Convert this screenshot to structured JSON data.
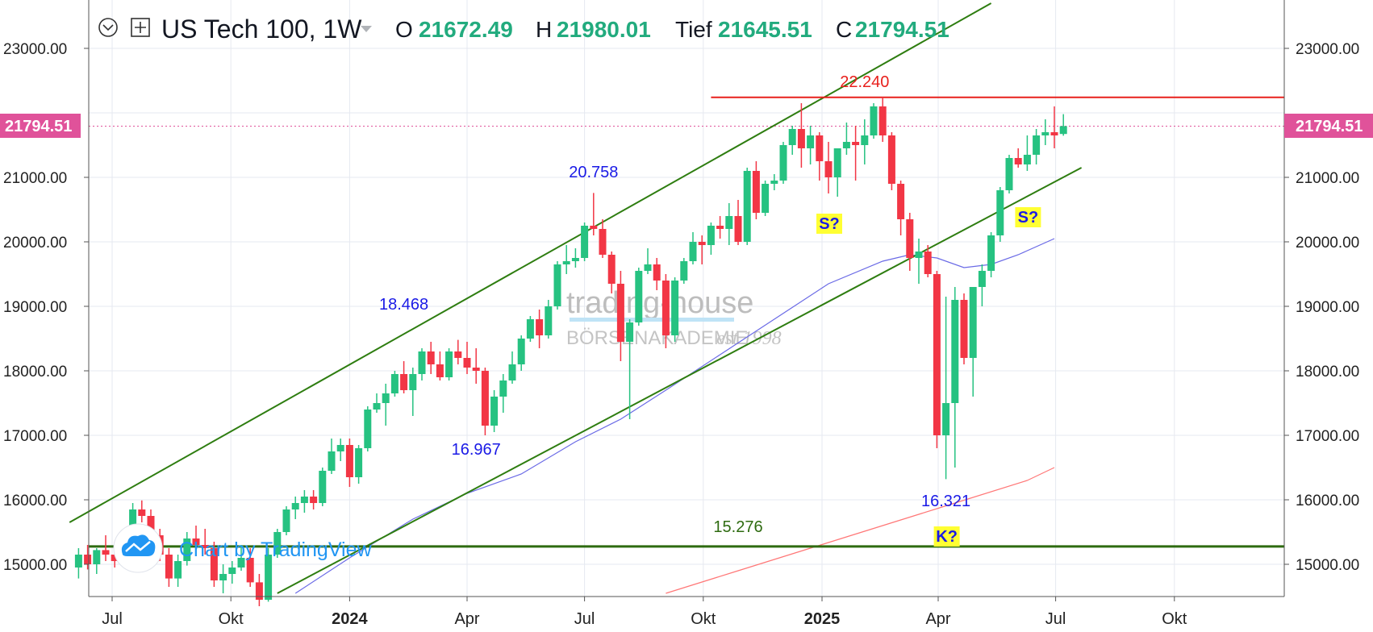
{
  "header": {
    "symbol": "US Tech 100, 1W",
    "open_label": "O",
    "open": "21672.49",
    "high_label": "H",
    "high": "21980.01",
    "low_label": "Tief",
    "low": "21645.51",
    "close_label": "C",
    "close": "21794.51"
  },
  "price_badge": "21794.51",
  "watermark": {
    "line1": "trading-house",
    "line2": "BÖRSENAKADEMIE",
    "line3": "est 1998"
  },
  "credit": "Chart by TradingView",
  "colors": {
    "up": "#26c281",
    "down": "#f23645",
    "channel": "#2e7d10",
    "ma_fast": "#6a6ae6",
    "ma_slow": "#f77",
    "resistance": "#e8201c",
    "support": "#2e6b10",
    "badge": "#e0529a"
  },
  "chart_data": {
    "type": "candlestick",
    "interval": "1W",
    "ylim": [
      14550,
      23650
    ],
    "y_ticks": [
      "15000.00",
      "16000.00",
      "17000.00",
      "18000.00",
      "19000.00",
      "20000.00",
      "21000.00",
      "23000.00"
    ],
    "y_tick_values": [
      15000,
      16000,
      17000,
      18000,
      19000,
      20000,
      21000,
      23000
    ],
    "x_ticks": [
      {
        "label": "Jul",
        "date": "2023-07-01"
      },
      {
        "label": "Okt",
        "date": "2023-10-01"
      },
      {
        "label": "2024",
        "date": "2024-01-01",
        "bold": true
      },
      {
        "label": "Apr",
        "date": "2024-04-01"
      },
      {
        "label": "Jul",
        "date": "2024-07-01"
      },
      {
        "label": "Okt",
        "date": "2024-10-01"
      },
      {
        "label": "2025",
        "date": "2025-01-01",
        "bold": true
      },
      {
        "label": "Apr",
        "date": "2025-04-01"
      },
      {
        "label": "Jul",
        "date": "2025-07-01"
      },
      {
        "label": "Okt",
        "date": "2025-10-01"
      }
    ],
    "last_price": 21794.51,
    "candles": [
      {
        "d": "2023-06-05",
        "o": 14950,
        "h": 15250,
        "l": 14780,
        "c": 15150
      },
      {
        "d": "2023-06-12",
        "o": 15150,
        "h": 15300,
        "l": 14920,
        "c": 15000
      },
      {
        "d": "2023-06-19",
        "o": 15000,
        "h": 15250,
        "l": 14850,
        "c": 15220
      },
      {
        "d": "2023-06-26",
        "o": 15220,
        "h": 15450,
        "l": 15050,
        "c": 15150
      },
      {
        "d": "2023-07-03",
        "o": 15150,
        "h": 15350,
        "l": 14950,
        "c": 15050
      },
      {
        "d": "2023-07-10",
        "o": 15050,
        "h": 15550,
        "l": 15000,
        "c": 15480
      },
      {
        "d": "2023-07-17",
        "o": 15480,
        "h": 15950,
        "l": 15400,
        "c": 15850
      },
      {
        "d": "2023-07-24",
        "o": 15850,
        "h": 15990,
        "l": 15650,
        "c": 15750
      },
      {
        "d": "2023-07-31",
        "o": 15750,
        "h": 15850,
        "l": 15350,
        "c": 15450
      },
      {
        "d": "2023-08-07",
        "o": 15450,
        "h": 15550,
        "l": 15050,
        "c": 15150
      },
      {
        "d": "2023-08-14",
        "o": 15150,
        "h": 15250,
        "l": 14650,
        "c": 14780
      },
      {
        "d": "2023-08-21",
        "o": 14780,
        "h": 15150,
        "l": 14650,
        "c": 15050
      },
      {
        "d": "2023-08-28",
        "o": 15050,
        "h": 15500,
        "l": 14980,
        "c": 15400
      },
      {
        "d": "2023-09-04",
        "o": 15400,
        "h": 15600,
        "l": 15250,
        "c": 15300
      },
      {
        "d": "2023-09-11",
        "o": 15300,
        "h": 15550,
        "l": 15150,
        "c": 15250
      },
      {
        "d": "2023-09-18",
        "o": 15250,
        "h": 15350,
        "l": 14650,
        "c": 14750
      },
      {
        "d": "2023-09-25",
        "o": 14750,
        "h": 15000,
        "l": 14550,
        "c": 14850
      },
      {
        "d": "2023-10-02",
        "o": 14850,
        "h": 15050,
        "l": 14700,
        "c": 14950
      },
      {
        "d": "2023-10-09",
        "o": 14950,
        "h": 15300,
        "l": 14900,
        "c": 15100
      },
      {
        "d": "2023-10-16",
        "o": 15100,
        "h": 15250,
        "l": 14650,
        "c": 14720
      },
      {
        "d": "2023-10-23",
        "o": 14720,
        "h": 14850,
        "l": 14350,
        "c": 14450
      },
      {
        "d": "2023-10-30",
        "o": 14450,
        "h": 15250,
        "l": 14420,
        "c": 15150
      },
      {
        "d": "2023-11-06",
        "o": 15150,
        "h": 15550,
        "l": 15100,
        "c": 15500
      },
      {
        "d": "2023-11-13",
        "o": 15500,
        "h": 15900,
        "l": 15450,
        "c": 15850
      },
      {
        "d": "2023-11-20",
        "o": 15850,
        "h": 16050,
        "l": 15700,
        "c": 15950
      },
      {
        "d": "2023-11-27",
        "o": 15950,
        "h": 16150,
        "l": 15800,
        "c": 16050
      },
      {
        "d": "2023-12-04",
        "o": 16050,
        "h": 16150,
        "l": 15850,
        "c": 15950
      },
      {
        "d": "2023-12-11",
        "o": 15950,
        "h": 16500,
        "l": 15900,
        "c": 16450
      },
      {
        "d": "2023-12-18",
        "o": 16450,
        "h": 16950,
        "l": 16400,
        "c": 16750
      },
      {
        "d": "2023-12-25",
        "o": 16750,
        "h": 16950,
        "l": 16600,
        "c": 16850
      },
      {
        "d": "2024-01-01",
        "o": 16850,
        "h": 16950,
        "l": 16200,
        "c": 16350
      },
      {
        "d": "2024-01-08",
        "o": 16350,
        "h": 16850,
        "l": 16250,
        "c": 16800
      },
      {
        "d": "2024-01-15",
        "o": 16800,
        "h": 17450,
        "l": 16750,
        "c": 17400
      },
      {
        "d": "2024-01-22",
        "o": 17400,
        "h": 17650,
        "l": 17350,
        "c": 17500
      },
      {
        "d": "2024-01-29",
        "o": 17500,
        "h": 17800,
        "l": 17150,
        "c": 17650
      },
      {
        "d": "2024-02-05",
        "o": 17650,
        "h": 18000,
        "l": 17600,
        "c": 17950
      },
      {
        "d": "2024-02-12",
        "o": 17950,
        "h": 18150,
        "l": 17650,
        "c": 17700
      },
      {
        "d": "2024-02-19",
        "o": 17700,
        "h": 18050,
        "l": 17300,
        "c": 17950
      },
      {
        "d": "2024-02-26",
        "o": 17950,
        "h": 18350,
        "l": 17850,
        "c": 18300
      },
      {
        "d": "2024-03-04",
        "o": 18300,
        "h": 18450,
        "l": 17950,
        "c": 18100
      },
      {
        "d": "2024-03-11",
        "o": 18100,
        "h": 18300,
        "l": 17850,
        "c": 17900
      },
      {
        "d": "2024-03-18",
        "o": 17900,
        "h": 18350,
        "l": 17850,
        "c": 18300
      },
      {
        "d": "2024-03-25",
        "o": 18300,
        "h": 18480,
        "l": 18100,
        "c": 18200
      },
      {
        "d": "2024-04-01",
        "o": 18200,
        "h": 18450,
        "l": 17950,
        "c": 18050
      },
      {
        "d": "2024-04-08",
        "o": 18050,
        "h": 18350,
        "l": 17800,
        "c": 18000
      },
      {
        "d": "2024-04-15",
        "o": 18000,
        "h": 18050,
        "l": 17000,
        "c": 17150
      },
      {
        "d": "2024-04-22",
        "o": 17150,
        "h": 17700,
        "l": 17050,
        "c": 17600
      },
      {
        "d": "2024-04-29",
        "o": 17600,
        "h": 17950,
        "l": 17350,
        "c": 17850
      },
      {
        "d": "2024-05-06",
        "o": 17850,
        "h": 18300,
        "l": 17800,
        "c": 18100
      },
      {
        "d": "2024-05-13",
        "o": 18100,
        "h": 18550,
        "l": 18000,
        "c": 18500
      },
      {
        "d": "2024-05-20",
        "o": 18500,
        "h": 18850,
        "l": 18450,
        "c": 18800
      },
      {
        "d": "2024-05-27",
        "o": 18800,
        "h": 18950,
        "l": 18350,
        "c": 18550
      },
      {
        "d": "2024-06-03",
        "o": 18550,
        "h": 19100,
        "l": 18500,
        "c": 19000
      },
      {
        "d": "2024-06-10",
        "o": 19000,
        "h": 19700,
        "l": 18950,
        "c": 19650
      },
      {
        "d": "2024-06-17",
        "o": 19650,
        "h": 19950,
        "l": 19500,
        "c": 19700
      },
      {
        "d": "2024-06-24",
        "o": 19700,
        "h": 19900,
        "l": 19600,
        "c": 19750
      },
      {
        "d": "2024-07-01",
        "o": 19750,
        "h": 20300,
        "l": 19700,
        "c": 20250
      },
      {
        "d": "2024-07-08",
        "o": 20250,
        "h": 20758,
        "l": 20100,
        "c": 20200
      },
      {
        "d": "2024-07-15",
        "o": 20200,
        "h": 20350,
        "l": 19750,
        "c": 19800
      },
      {
        "d": "2024-07-22",
        "o": 19800,
        "h": 19850,
        "l": 19200,
        "c": 19350
      },
      {
        "d": "2024-07-29",
        "o": 19350,
        "h": 19550,
        "l": 18150,
        "c": 18450
      },
      {
        "d": "2024-08-05",
        "o": 18450,
        "h": 18800,
        "l": 17250,
        "c": 18750
      },
      {
        "d": "2024-08-12",
        "o": 18750,
        "h": 19600,
        "l": 18700,
        "c": 19550
      },
      {
        "d": "2024-08-19",
        "o": 19550,
        "h": 19900,
        "l": 19500,
        "c": 19650
      },
      {
        "d": "2024-08-26",
        "o": 19650,
        "h": 19750,
        "l": 19250,
        "c": 19400
      },
      {
        "d": "2024-09-02",
        "o": 19400,
        "h": 19500,
        "l": 18350,
        "c": 18550
      },
      {
        "d": "2024-09-09",
        "o": 18550,
        "h": 19450,
        "l": 18450,
        "c": 19400
      },
      {
        "d": "2024-09-16",
        "o": 19400,
        "h": 19750,
        "l": 19350,
        "c": 19700
      },
      {
        "d": "2024-09-23",
        "o": 19700,
        "h": 20150,
        "l": 19650,
        "c": 20000
      },
      {
        "d": "2024-09-30",
        "o": 20000,
        "h": 20100,
        "l": 19650,
        "c": 19950
      },
      {
        "d": "2024-10-07",
        "o": 19950,
        "h": 20300,
        "l": 19800,
        "c": 20250
      },
      {
        "d": "2024-10-14",
        "o": 20250,
        "h": 20400,
        "l": 20050,
        "c": 20200
      },
      {
        "d": "2024-10-21",
        "o": 20200,
        "h": 20600,
        "l": 19950,
        "c": 20400
      },
      {
        "d": "2024-10-28",
        "o": 20400,
        "h": 20650,
        "l": 19950,
        "c": 20000
      },
      {
        "d": "2024-11-04",
        "o": 20000,
        "h": 21150,
        "l": 19950,
        "c": 21100
      },
      {
        "d": "2024-11-11",
        "o": 21100,
        "h": 21250,
        "l": 20350,
        "c": 20450
      },
      {
        "d": "2024-11-18",
        "o": 20450,
        "h": 20950,
        "l": 20400,
        "c": 20900
      },
      {
        "d": "2024-11-25",
        "o": 20900,
        "h": 21050,
        "l": 20800,
        "c": 20950
      },
      {
        "d": "2024-12-02",
        "o": 20950,
        "h": 21550,
        "l": 20900,
        "c": 21500
      },
      {
        "d": "2024-12-09",
        "o": 21500,
        "h": 21800,
        "l": 21350,
        "c": 21750
      },
      {
        "d": "2024-12-16",
        "o": 21750,
        "h": 22150,
        "l": 21150,
        "c": 21450
      },
      {
        "d": "2024-12-23",
        "o": 21450,
        "h": 21800,
        "l": 21200,
        "c": 21650
      },
      {
        "d": "2024-12-30",
        "o": 21650,
        "h": 21700,
        "l": 20950,
        "c": 21250
      },
      {
        "d": "2025-01-06",
        "o": 21250,
        "h": 21550,
        "l": 20750,
        "c": 21000
      },
      {
        "d": "2025-01-13",
        "o": 21000,
        "h": 21450,
        "l": 20700,
        "c": 21450
      },
      {
        "d": "2025-01-20",
        "o": 21450,
        "h": 21850,
        "l": 21350,
        "c": 21550
      },
      {
        "d": "2025-01-27",
        "o": 21550,
        "h": 21800,
        "l": 20950,
        "c": 21500
      },
      {
        "d": "2025-02-03",
        "o": 21500,
        "h": 21900,
        "l": 21200,
        "c": 21650
      },
      {
        "d": "2025-02-10",
        "o": 21650,
        "h": 22150,
        "l": 21600,
        "c": 22100
      },
      {
        "d": "2025-02-17",
        "o": 22100,
        "h": 22240,
        "l": 21550,
        "c": 21650
      },
      {
        "d": "2025-02-24",
        "o": 21650,
        "h": 21700,
        "l": 20800,
        "c": 20900
      },
      {
        "d": "2025-03-03",
        "o": 20900,
        "h": 20950,
        "l": 20100,
        "c": 20350
      },
      {
        "d": "2025-03-10",
        "o": 20350,
        "h": 20450,
        "l": 19550,
        "c": 19750
      },
      {
        "d": "2025-03-17",
        "o": 19750,
        "h": 20050,
        "l": 19350,
        "c": 19850
      },
      {
        "d": "2025-03-24",
        "o": 19850,
        "h": 19950,
        "l": 19450,
        "c": 19500
      },
      {
        "d": "2025-03-31",
        "o": 19500,
        "h": 19550,
        "l": 16800,
        "c": 17000
      },
      {
        "d": "2025-04-07",
        "o": 17000,
        "h": 19150,
        "l": 16321,
        "c": 17500
      },
      {
        "d": "2025-04-14",
        "o": 17500,
        "h": 19300,
        "l": 16500,
        "c": 19100
      },
      {
        "d": "2025-04-21",
        "o": 19100,
        "h": 19200,
        "l": 18100,
        "c": 18200
      },
      {
        "d": "2025-04-28",
        "o": 18200,
        "h": 19300,
        "l": 17600,
        "c": 19300
      },
      {
        "d": "2025-05-05",
        "o": 19300,
        "h": 19650,
        "l": 19000,
        "c": 19550
      },
      {
        "d": "2025-05-12",
        "o": 19550,
        "h": 20150,
        "l": 19450,
        "c": 20100
      },
      {
        "d": "2025-05-19",
        "o": 20100,
        "h": 20850,
        "l": 20000,
        "c": 20800
      },
      {
        "d": "2025-05-26",
        "o": 20800,
        "h": 21350,
        "l": 20750,
        "c": 21300
      },
      {
        "d": "2025-06-02",
        "o": 21300,
        "h": 21450,
        "l": 21150,
        "c": 21200
      },
      {
        "d": "2025-06-09",
        "o": 21200,
        "h": 21650,
        "l": 21100,
        "c": 21350
      },
      {
        "d": "2025-06-16",
        "o": 21350,
        "h": 21750,
        "l": 21200,
        "c": 21650
      },
      {
        "d": "2025-06-23",
        "o": 21650,
        "h": 21900,
        "l": 21500,
        "c": 21700
      },
      {
        "d": "2025-06-30",
        "o": 21700,
        "h": 22100,
        "l": 21450,
        "c": 21650
      },
      {
        "d": "2025-07-07",
        "o": 21672.49,
        "h": 21980.01,
        "l": 21645.51,
        "c": 21794.51
      }
    ],
    "ma_fast": [
      {
        "d": "2023-11-20",
        "v": 14550
      },
      {
        "d": "2024-01-01",
        "v": 15100
      },
      {
        "d": "2024-02-19",
        "v": 15700
      },
      {
        "d": "2024-04-01",
        "v": 16100
      },
      {
        "d": "2024-05-13",
        "v": 16400
      },
      {
        "d": "2024-06-24",
        "v": 16900
      },
      {
        "d": "2024-07-29",
        "v": 17250
      },
      {
        "d": "2024-09-02",
        "v": 17700
      },
      {
        "d": "2024-10-14",
        "v": 18250
      },
      {
        "d": "2024-11-25",
        "v": 18800
      },
      {
        "d": "2025-01-06",
        "v": 19350
      },
      {
        "d": "2025-02-17",
        "v": 19700
      },
      {
        "d": "2025-03-10",
        "v": 19800
      },
      {
        "d": "2025-03-31",
        "v": 19750
      },
      {
        "d": "2025-04-21",
        "v": 19600
      },
      {
        "d": "2025-05-12",
        "v": 19650
      },
      {
        "d": "2025-06-02",
        "v": 19800
      },
      {
        "d": "2025-06-30",
        "v": 20050
      }
    ],
    "ma_slow": [
      {
        "d": "2024-09-02",
        "v": 14550
      },
      {
        "d": "2024-10-28",
        "v": 14900
      },
      {
        "d": "2024-12-23",
        "v": 15250
      },
      {
        "d": "2025-02-17",
        "v": 15600
      },
      {
        "d": "2025-04-14",
        "v": 15950
      },
      {
        "d": "2025-06-09",
        "v": 16300
      },
      {
        "d": "2025-06-30",
        "v": 16500
      }
    ],
    "channel_upper": [
      {
        "d": "2023-05-29",
        "v": 15650
      },
      {
        "d": "2025-05-12",
        "v": 23700
      }
    ],
    "channel_lower": [
      {
        "d": "2023-11-06",
        "v": 14550
      },
      {
        "d": "2025-07-21",
        "v": 21150
      }
    ],
    "resistance": {
      "value": 22240,
      "from": "2024-10-07",
      "label": "22.240"
    },
    "support": {
      "value": 15276,
      "label": "15.276"
    },
    "annotations": [
      {
        "text": "20.758",
        "d": "2024-07-08",
        "v": 21000,
        "color": "#1a1ae6"
      },
      {
        "text": "18.468",
        "d": "2024-02-12",
        "v": 18950,
        "color": "#1a1ae6"
      },
      {
        "text": "16.967",
        "d": "2024-04-08",
        "v": 16700,
        "color": "#1a1ae6"
      },
      {
        "text": "16.321",
        "d": "2025-04-07",
        "v": 15900,
        "color": "#1a1ae6"
      },
      {
        "text": "22.240",
        "d": "2025-02-03",
        "v": 22400,
        "color": "#e8201c"
      },
      {
        "text": "15.276",
        "d": "2024-10-28",
        "v": 15500,
        "color": "#2e6b10"
      }
    ],
    "boxes": [
      {
        "text": "S?",
        "d": "2025-01-06",
        "v": 20200
      },
      {
        "text": "S?",
        "d": "2025-06-09",
        "v": 20300
      },
      {
        "text": "K?",
        "d": "2025-04-07",
        "v": 15350
      }
    ]
  }
}
